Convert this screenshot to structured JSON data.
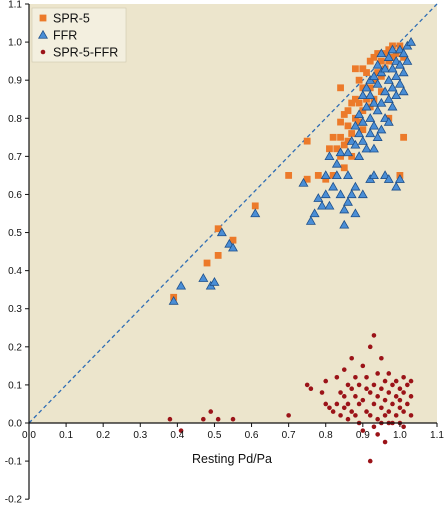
{
  "colors": {
    "plot_background": "#ece5cc",
    "spr5": "#ec7a2a",
    "ffr": "#4a8ed6",
    "ffr_edge": "#1d4f8a",
    "spr5_ffr": "#9b1318",
    "identity_line": "#2f6db4",
    "axis": "#111111"
  },
  "chart_data": {
    "type": "scatter",
    "xlabel": "Resting Pd/Pa",
    "ylabel": "",
    "xlim": [
      0.0,
      1.1
    ],
    "ylim": [
      -0.2,
      1.1
    ],
    "x_ticks": [
      "0.0",
      "0.1",
      "0.2",
      "0.3",
      "0.4",
      "0.5",
      "0.6",
      "0.7",
      "0.8",
      "0.9",
      "1.0",
      "1.1"
    ],
    "y_ticks": [
      "-0.2",
      "-0.1",
      "0.0",
      "0.1",
      "0.2",
      "0.3",
      "0.4",
      "0.5",
      "0.6",
      "0.7",
      "0.8",
      "0.9",
      "1.0",
      "1.1"
    ],
    "plot_area_ylim": [
      0.0,
      1.1
    ],
    "grid": false,
    "legend_position": "top-left",
    "identity_line": true,
    "series": [
      {
        "name": "SPR-5",
        "marker": "square",
        "color": "#ec7a2a",
        "points": [
          [
            0.39,
            0.33
          ],
          [
            0.48,
            0.42
          ],
          [
            0.51,
            0.44
          ],
          [
            0.51,
            0.51
          ],
          [
            0.55,
            0.48
          ],
          [
            0.61,
            0.57
          ],
          [
            0.7,
            0.65
          ],
          [
            0.75,
            0.74
          ],
          [
            0.75,
            0.64
          ],
          [
            0.78,
            0.65
          ],
          [
            0.8,
            0.64
          ],
          [
            0.82,
            0.65
          ],
          [
            0.81,
            0.72
          ],
          [
            0.82,
            0.75
          ],
          [
            0.83,
            0.72
          ],
          [
            0.84,
            0.75
          ],
          [
            0.84,
            0.7
          ],
          [
            0.85,
            0.73
          ],
          [
            0.84,
            0.79
          ],
          [
            0.85,
            0.81
          ],
          [
            0.84,
            0.88
          ],
          [
            0.86,
            0.74
          ],
          [
            0.86,
            0.78
          ],
          [
            0.86,
            0.82
          ],
          [
            0.87,
            0.84
          ],
          [
            0.87,
            0.76
          ],
          [
            0.88,
            0.8
          ],
          [
            0.88,
            0.85
          ],
          [
            0.88,
            0.93
          ],
          [
            0.89,
            0.79
          ],
          [
            0.89,
            0.84
          ],
          [
            0.89,
            0.9
          ],
          [
            0.9,
            0.82
          ],
          [
            0.9,
            0.88
          ],
          [
            0.9,
            0.93
          ],
          [
            0.91,
            0.85
          ],
          [
            0.91,
            0.92
          ],
          [
            0.92,
            0.88
          ],
          [
            0.92,
            0.95
          ],
          [
            0.93,
            0.9
          ],
          [
            0.93,
            0.96
          ],
          [
            0.94,
            0.92
          ],
          [
            0.94,
            0.97
          ],
          [
            0.95,
            0.95
          ],
          [
            0.95,
            0.91
          ],
          [
            0.96,
            0.97
          ],
          [
            0.96,
            0.93
          ],
          [
            0.97,
            0.95
          ],
          [
            0.97,
            0.98
          ],
          [
            0.98,
            0.99
          ],
          [
            0.98,
            0.96
          ],
          [
            0.99,
            0.97
          ],
          [
            1.0,
            0.99
          ],
          [
            1.0,
            0.98
          ],
          [
            1.01,
            0.96
          ],
          [
            1.01,
            0.75
          ],
          [
            1.0,
            0.65
          ],
          [
            0.97,
            0.8
          ],
          [
            0.93,
            0.85
          ],
          [
            0.95,
            0.87
          ],
          [
            0.92,
            0.83
          ],
          [
            0.9,
            0.77
          ],
          [
            0.87,
            0.7
          ],
          [
            0.85,
            0.67
          ]
        ]
      },
      {
        "name": "FFR",
        "marker": "triangle",
        "color": "#4a8ed6",
        "points": [
          [
            0.39,
            0.32
          ],
          [
            0.41,
            0.36
          ],
          [
            0.47,
            0.38
          ],
          [
            0.49,
            0.36
          ],
          [
            0.5,
            0.37
          ],
          [
            0.52,
            0.5
          ],
          [
            0.54,
            0.47
          ],
          [
            0.55,
            0.46
          ],
          [
            0.61,
            0.55
          ],
          [
            0.74,
            0.63
          ],
          [
            0.76,
            0.53
          ],
          [
            0.77,
            0.55
          ],
          [
            0.78,
            0.59
          ],
          [
            0.79,
            0.57
          ],
          [
            0.8,
            0.65
          ],
          [
            0.8,
            0.6
          ],
          [
            0.81,
            0.57
          ],
          [
            0.82,
            0.62
          ],
          [
            0.81,
            0.7
          ],
          [
            0.83,
            0.65
          ],
          [
            0.83,
            0.68
          ],
          [
            0.84,
            0.6
          ],
          [
            0.84,
            0.71
          ],
          [
            0.85,
            0.52
          ],
          [
            0.85,
            0.56
          ],
          [
            0.86,
            0.58
          ],
          [
            0.86,
            0.65
          ],
          [
            0.86,
            0.71
          ],
          [
            0.87,
            0.6
          ],
          [
            0.87,
            0.74
          ],
          [
            0.88,
            0.55
          ],
          [
            0.88,
            0.73
          ],
          [
            0.88,
            0.78
          ],
          [
            0.89,
            0.7
          ],
          [
            0.89,
            0.81
          ],
          [
            0.89,
            0.76
          ],
          [
            0.9,
            0.74
          ],
          [
            0.9,
            0.79
          ],
          [
            0.9,
            0.86
          ],
          [
            0.91,
            0.72
          ],
          [
            0.91,
            0.83
          ],
          [
            0.91,
            0.88
          ],
          [
            0.92,
            0.76
          ],
          [
            0.92,
            0.8
          ],
          [
            0.92,
            0.86
          ],
          [
            0.92,
            0.9
          ],
          [
            0.93,
            0.72
          ],
          [
            0.93,
            0.78
          ],
          [
            0.93,
            0.84
          ],
          [
            0.93,
            0.91
          ],
          [
            0.94,
            0.75
          ],
          [
            0.94,
            0.82
          ],
          [
            0.94,
            0.89
          ],
          [
            0.94,
            0.94
          ],
          [
            0.95,
            0.77
          ],
          [
            0.95,
            0.84
          ],
          [
            0.95,
            0.92
          ],
          [
            0.95,
            0.97
          ],
          [
            0.96,
            0.8
          ],
          [
            0.96,
            0.87
          ],
          [
            0.96,
            0.93
          ],
          [
            0.97,
            0.79
          ],
          [
            0.97,
            0.85
          ],
          [
            0.97,
            0.9
          ],
          [
            0.97,
            0.96
          ],
          [
            0.98,
            0.83
          ],
          [
            0.98,
            0.88
          ],
          [
            0.98,
            0.93
          ],
          [
            0.98,
            0.98
          ],
          [
            0.99,
            0.86
          ],
          [
            0.99,
            0.91
          ],
          [
            0.99,
            0.95
          ],
          [
            1.0,
            0.89
          ],
          [
            1.0,
            0.94
          ],
          [
            1.0,
            0.98
          ],
          [
            1.01,
            0.87
          ],
          [
            1.01,
            0.92
          ],
          [
            1.01,
            0.97
          ],
          [
            1.02,
            0.95
          ],
          [
            1.02,
            0.99
          ],
          [
            1.03,
            1.0
          ],
          [
            0.92,
            0.64
          ],
          [
            0.93,
            0.65
          ],
          [
            0.96,
            0.65
          ],
          [
            0.97,
            0.64
          ],
          [
            0.99,
            0.62
          ],
          [
            1.0,
            0.64
          ],
          [
            0.9,
            0.6
          ],
          [
            0.88,
            0.62
          ]
        ]
      },
      {
        "name": "SPR-5-FFR",
        "marker": "circle",
        "color": "#9b1318",
        "points": [
          [
            0.38,
            0.01
          ],
          [
            0.41,
            -0.02
          ],
          [
            0.47,
            0.01
          ],
          [
            0.49,
            0.03
          ],
          [
            0.51,
            0.01
          ],
          [
            0.55,
            0.01
          ],
          [
            0.7,
            0.02
          ],
          [
            0.75,
            0.1
          ],
          [
            0.76,
            0.09
          ],
          [
            0.79,
            0.08
          ],
          [
            0.8,
            0.11
          ],
          [
            0.8,
            0.05
          ],
          [
            0.81,
            0.04
          ],
          [
            0.82,
            0.03
          ],
          [
            0.83,
            0.12
          ],
          [
            0.83,
            0.05
          ],
          [
            0.84,
            0.08
          ],
          [
            0.84,
            0.02
          ],
          [
            0.85,
            0.14
          ],
          [
            0.85,
            0.07
          ],
          [
            0.85,
            0.04
          ],
          [
            0.86,
            0.1
          ],
          [
            0.86,
            0.05
          ],
          [
            0.86,
            0.01
          ],
          [
            0.87,
            0.17
          ],
          [
            0.87,
            0.09
          ],
          [
            0.87,
            0.03
          ],
          [
            0.88,
            0.12
          ],
          [
            0.88,
            0.07
          ],
          [
            0.88,
            0.02
          ],
          [
            0.89,
            0.05
          ],
          [
            0.89,
            0.1
          ],
          [
            0.89,
            0.0
          ],
          [
            0.9,
            0.15
          ],
          [
            0.9,
            0.06
          ],
          [
            0.9,
            -0.02
          ],
          [
            0.91,
            0.09
          ],
          [
            0.91,
            0.03
          ],
          [
            0.91,
            0.12
          ],
          [
            0.92,
            0.2
          ],
          [
            0.92,
            0.08
          ],
          [
            0.92,
            0.02
          ],
          [
            0.92,
            -0.1
          ],
          [
            0.93,
            0.05
          ],
          [
            0.93,
            0.1
          ],
          [
            0.93,
            0.23
          ],
          [
            0.94,
            0.07
          ],
          [
            0.94,
            0.13
          ],
          [
            0.94,
            0.01
          ],
          [
            0.94,
            -0.03
          ],
          [
            0.95,
            0.09
          ],
          [
            0.95,
            0.04
          ],
          [
            0.95,
            0.17
          ],
          [
            0.96,
            0.06
          ],
          [
            0.96,
            0.11
          ],
          [
            0.96,
            0.02
          ],
          [
            0.96,
            -0.05
          ],
          [
            0.97,
            0.08
          ],
          [
            0.97,
            0.03
          ],
          [
            0.97,
            0.13
          ],
          [
            0.98,
            0.05
          ],
          [
            0.98,
            0.1
          ],
          [
            0.98,
            0.0
          ],
          [
            0.99,
            0.07
          ],
          [
            0.99,
            0.02
          ],
          [
            0.99,
            0.11
          ],
          [
            1.0,
            0.04
          ],
          [
            1.0,
            0.09
          ],
          [
            1.0,
            0.0
          ],
          [
            1.0,
            0.06
          ],
          [
            1.01,
            0.12
          ],
          [
            1.01,
            0.08
          ],
          [
            1.01,
            0.03
          ],
          [
            1.01,
            -0.01
          ],
          [
            1.02,
            0.1
          ],
          [
            1.02,
            0.05
          ],
          [
            1.03,
            0.11
          ],
          [
            1.03,
            0.07
          ],
          [
            1.03,
            0.02
          ],
          [
            0.97,
            0.0
          ],
          [
            0.95,
            0.0
          ],
          [
            0.93,
            -0.01
          ]
        ]
      }
    ]
  }
}
